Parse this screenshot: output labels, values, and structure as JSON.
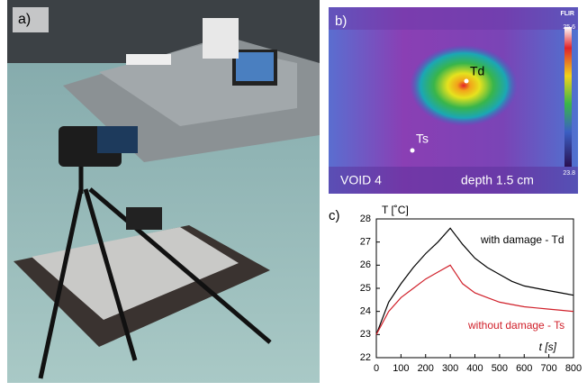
{
  "photo": {
    "label": "a)"
  },
  "thermal": {
    "label": "b)",
    "brand": "FLIR",
    "scale_max": 25.6,
    "scale_min": 23.8,
    "hot_label": "Td",
    "cold_label": "Ts",
    "caption_left": "VOID 4",
    "caption_right": "depth 1.5 cm"
  },
  "chart_data": {
    "type": "line",
    "panel_label": "c)",
    "y_label": "T [˚C]",
    "x_label": "t [s]",
    "x": [
      0,
      50,
      100,
      150,
      200,
      250,
      300,
      350,
      400,
      450,
      500,
      550,
      600,
      650,
      700,
      750,
      800
    ],
    "series": [
      {
        "name": "with damage - Td",
        "color": "#000000",
        "values": [
          23.0,
          24.4,
          25.2,
          25.9,
          26.5,
          27.0,
          27.6,
          26.9,
          26.3,
          25.9,
          25.6,
          25.3,
          25.1,
          25.0,
          24.9,
          24.8,
          24.7
        ]
      },
      {
        "name": "without damage - Ts",
        "color": "#d0202a",
        "values": [
          23.0,
          24.0,
          24.6,
          25.0,
          25.4,
          25.7,
          26.0,
          25.2,
          24.8,
          24.6,
          24.4,
          24.3,
          24.2,
          24.15,
          24.1,
          24.05,
          24.0
        ]
      }
    ],
    "xlim": [
      0,
      800
    ],
    "ylim": [
      22,
      28
    ],
    "xticks": [
      0,
      100,
      200,
      300,
      400,
      500,
      600,
      700,
      800
    ],
    "yticks": [
      22,
      23,
      24,
      25,
      26,
      27,
      28
    ]
  }
}
